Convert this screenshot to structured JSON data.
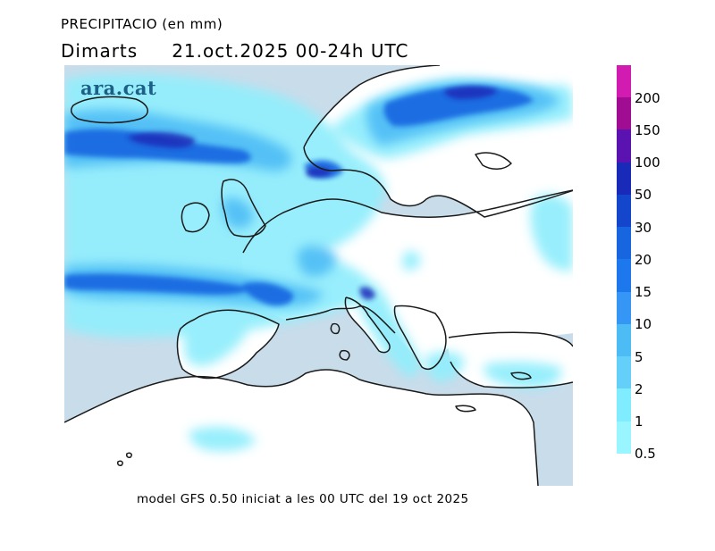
{
  "header": {
    "title": "PRECIPITACIO (en mm)",
    "day": "Dimarts",
    "date_range": "21.oct.2025 00-24h UTC"
  },
  "logo": {
    "text": "ara.cat",
    "color": "#1d5f86"
  },
  "footer": {
    "model_text": "model GFS 0.50 iniciat a les 00 UTC del 19 oct 2025"
  },
  "map": {
    "region": "Europe",
    "land_color": "#ffffff",
    "sea_color": "#c9dcea",
    "coast_color": "#1a1a1a"
  },
  "legend": {
    "levels": [
      "0.5",
      "1",
      "2",
      "5",
      "10",
      "15",
      "20",
      "30",
      "50",
      "100",
      "150",
      "200"
    ],
    "colors": [
      "#99f5ff",
      "#80ecff",
      "#64cff8",
      "#4dbcf5",
      "#3596f5",
      "#1e78ed",
      "#1865e0",
      "#1446cc",
      "#1a2ab8",
      "#5a12b0",
      "#a00c92",
      "#d21bb0"
    ]
  }
}
